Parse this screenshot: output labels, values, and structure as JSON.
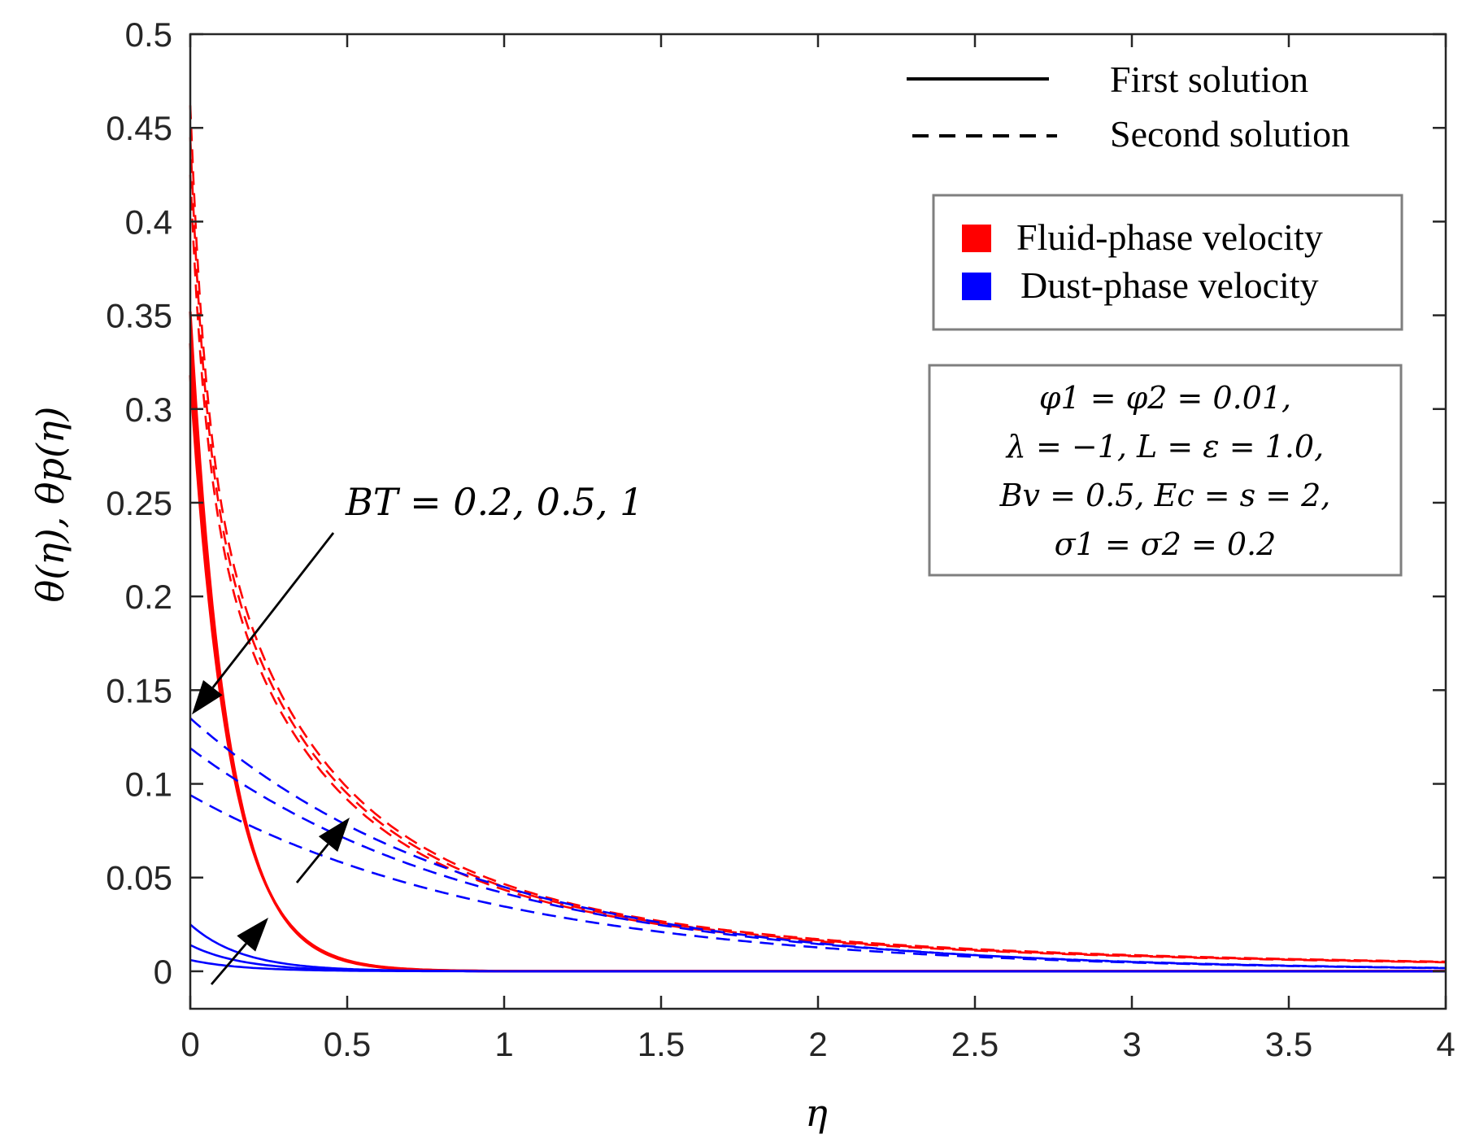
{
  "chart_data": {
    "type": "line",
    "title": "",
    "xlabel": "η",
    "ylabel": "θ(η), θp(η)",
    "xlim": [
      0,
      4
    ],
    "ylim": [
      -0.02,
      0.5
    ],
    "xticks": [
      "0",
      "0.5",
      "1",
      "1.5",
      "2",
      "2.5",
      "3",
      "3.5",
      "4"
    ],
    "yticks": [
      "0",
      "0.05",
      "0.1",
      "0.15",
      "0.2",
      "0.25",
      "0.3",
      "0.35",
      "0.4",
      "0.45",
      "0.5"
    ],
    "grid": false,
    "legend_style": {
      "location": "top-right",
      "entries": [
        {
          "label": "First solution",
          "line": "solid"
        },
        {
          "label": "Second solution",
          "line": "dashed"
        }
      ]
    },
    "legend_color": {
      "location": "upper-right",
      "entries": [
        {
          "label": "Fluid-phase velocity",
          "color": "#ff0000"
        },
        {
          "label": "Dust-phase velocity",
          "color": "#0000ff"
        }
      ]
    },
    "parameters_box": [
      "φ1 = φ2 = 0.01,",
      "λ = −1, L = ε = 1.0,",
      "Bv = 0.5, Ec = s = 2,",
      "σ1 = σ2 = 0.2"
    ],
    "annotation": {
      "text": "BT = 0.2, 0.5, 1",
      "arrow_point": [
        0.0,
        0.137
      ]
    },
    "series": [
      {
        "name": "Fluid first BT=0.2",
        "phase": "fluid",
        "solution": "first",
        "BT": 0.2,
        "color": "#ff0000",
        "style": "solid",
        "y0": 0.352,
        "k": 8.4
      },
      {
        "name": "Fluid first BT=0.5",
        "phase": "fluid",
        "solution": "first",
        "BT": 0.5,
        "color": "#ff0000",
        "style": "solid",
        "y0": 0.335,
        "k": 8.2
      },
      {
        "name": "Fluid first BT=1",
        "phase": "fluid",
        "solution": "first",
        "BT": 1,
        "color": "#ff0000",
        "style": "solid",
        "y0": 0.318,
        "k": 8.0
      },
      {
        "name": "Fluid second BT=0.2",
        "phase": "fluid",
        "solution": "second",
        "BT": 0.2,
        "color": "#ff0000",
        "style": "dashed",
        "y0": 0.462,
        "k": 22,
        "y1": 0.305
      },
      {
        "name": "Fluid second BT=0.5",
        "phase": "fluid",
        "solution": "second",
        "BT": 0.5,
        "color": "#ff0000",
        "style": "dashed",
        "y0": 0.445,
        "k": 22,
        "y1": 0.295
      },
      {
        "name": "Fluid second BT=1",
        "phase": "fluid",
        "solution": "second",
        "BT": 1,
        "color": "#ff0000",
        "style": "dashed",
        "y0": 0.425,
        "k": 22,
        "y1": 0.285
      },
      {
        "name": "Dust first BT=0.2",
        "phase": "dust",
        "solution": "first",
        "BT": 0.2,
        "color": "#0000ff",
        "style": "solid",
        "y0": 0.006,
        "k": 6
      },
      {
        "name": "Dust first BT=0.5",
        "phase": "dust",
        "solution": "first",
        "BT": 0.5,
        "color": "#0000ff",
        "style": "solid",
        "y0": 0.014,
        "k": 6
      },
      {
        "name": "Dust first BT=1",
        "phase": "dust",
        "solution": "first",
        "BT": 1,
        "color": "#0000ff",
        "style": "solid",
        "y0": 0.025,
        "k": 6
      },
      {
        "name": "Dust second BT=0.2",
        "phase": "dust",
        "solution": "second",
        "BT": 0.2,
        "color": "#0000ff",
        "style": "dashed",
        "y0": 0.094,
        "k": 1.0
      },
      {
        "name": "Dust second BT=0.5",
        "phase": "dust",
        "solution": "second",
        "BT": 0.5,
        "color": "#0000ff",
        "style": "dashed",
        "y0": 0.119,
        "k": 1.05
      },
      {
        "name": "Dust second BT=1",
        "phase": "dust",
        "solution": "second",
        "BT": 1,
        "color": "#0000ff",
        "style": "dashed",
        "y0": 0.135,
        "k": 1.1
      }
    ]
  }
}
